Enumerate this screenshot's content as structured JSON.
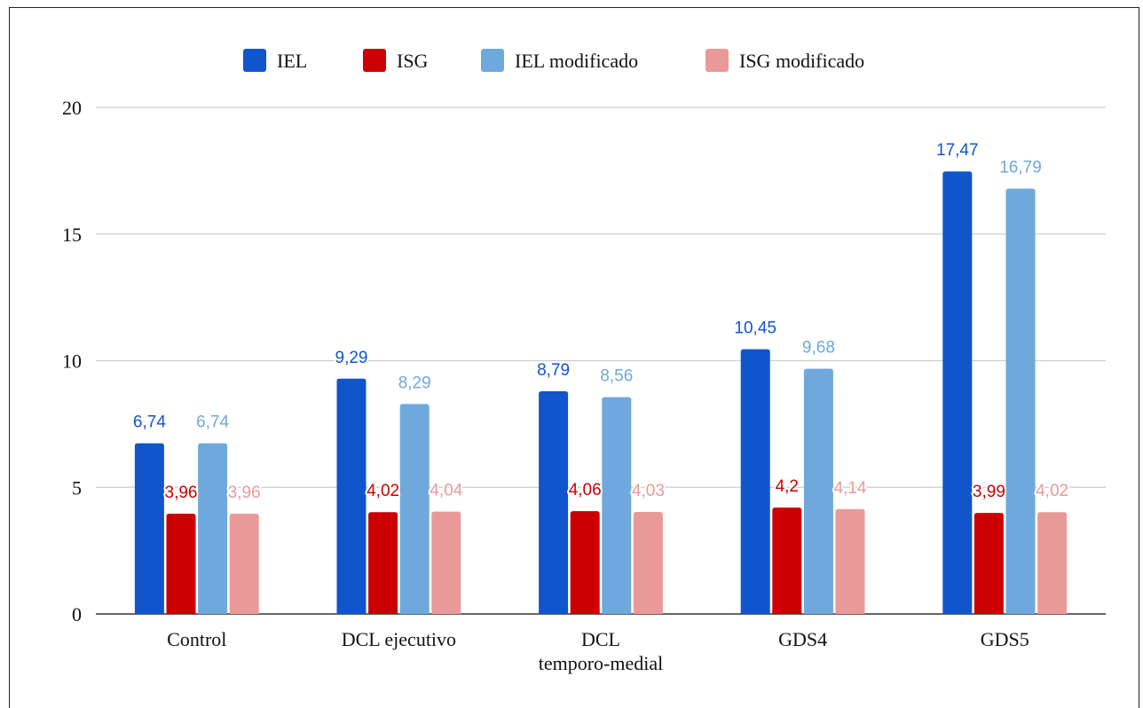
{
  "chart_data": {
    "type": "bar",
    "categories": [
      [
        "Control"
      ],
      [
        "DCL ejecutivo"
      ],
      [
        "DCL",
        "temporo-medial"
      ],
      [
        "GDS4"
      ],
      [
        "GDS5"
      ]
    ],
    "series": [
      {
        "name": "IEL",
        "color": "#1155cc",
        "values": [
          6.74,
          9.29,
          8.79,
          10.45,
          17.47
        ],
        "labels": [
          "6,74",
          "9,29",
          "8,79",
          "10,45",
          "17,47"
        ]
      },
      {
        "name": "ISG",
        "color": "#cc0000",
        "values": [
          3.96,
          4.02,
          4.06,
          4.2,
          3.99
        ],
        "labels": [
          "3,96",
          "4,02",
          "4,06",
          "4,2",
          "3,99"
        ]
      },
      {
        "name": "IEL modificado",
        "color": "#6fa8dc",
        "values": [
          6.74,
          8.29,
          8.56,
          9.68,
          16.79
        ],
        "labels": [
          "6,74",
          "8,29",
          "8,56",
          "9,68",
          "16,79"
        ]
      },
      {
        "name": "ISG modificado",
        "color": "#ea9999",
        "values": [
          3.96,
          4.04,
          4.03,
          4.14,
          4.02
        ],
        "labels": [
          "3,96",
          "4,04",
          "4,03",
          "4,14",
          "4,02"
        ]
      }
    ],
    "ylim": [
      0,
      20
    ],
    "yticks": [
      "0",
      "5",
      "10",
      "15",
      "20"
    ],
    "grid": true,
    "legend_position": "top",
    "title": "",
    "xlabel": "",
    "ylabel": ""
  }
}
